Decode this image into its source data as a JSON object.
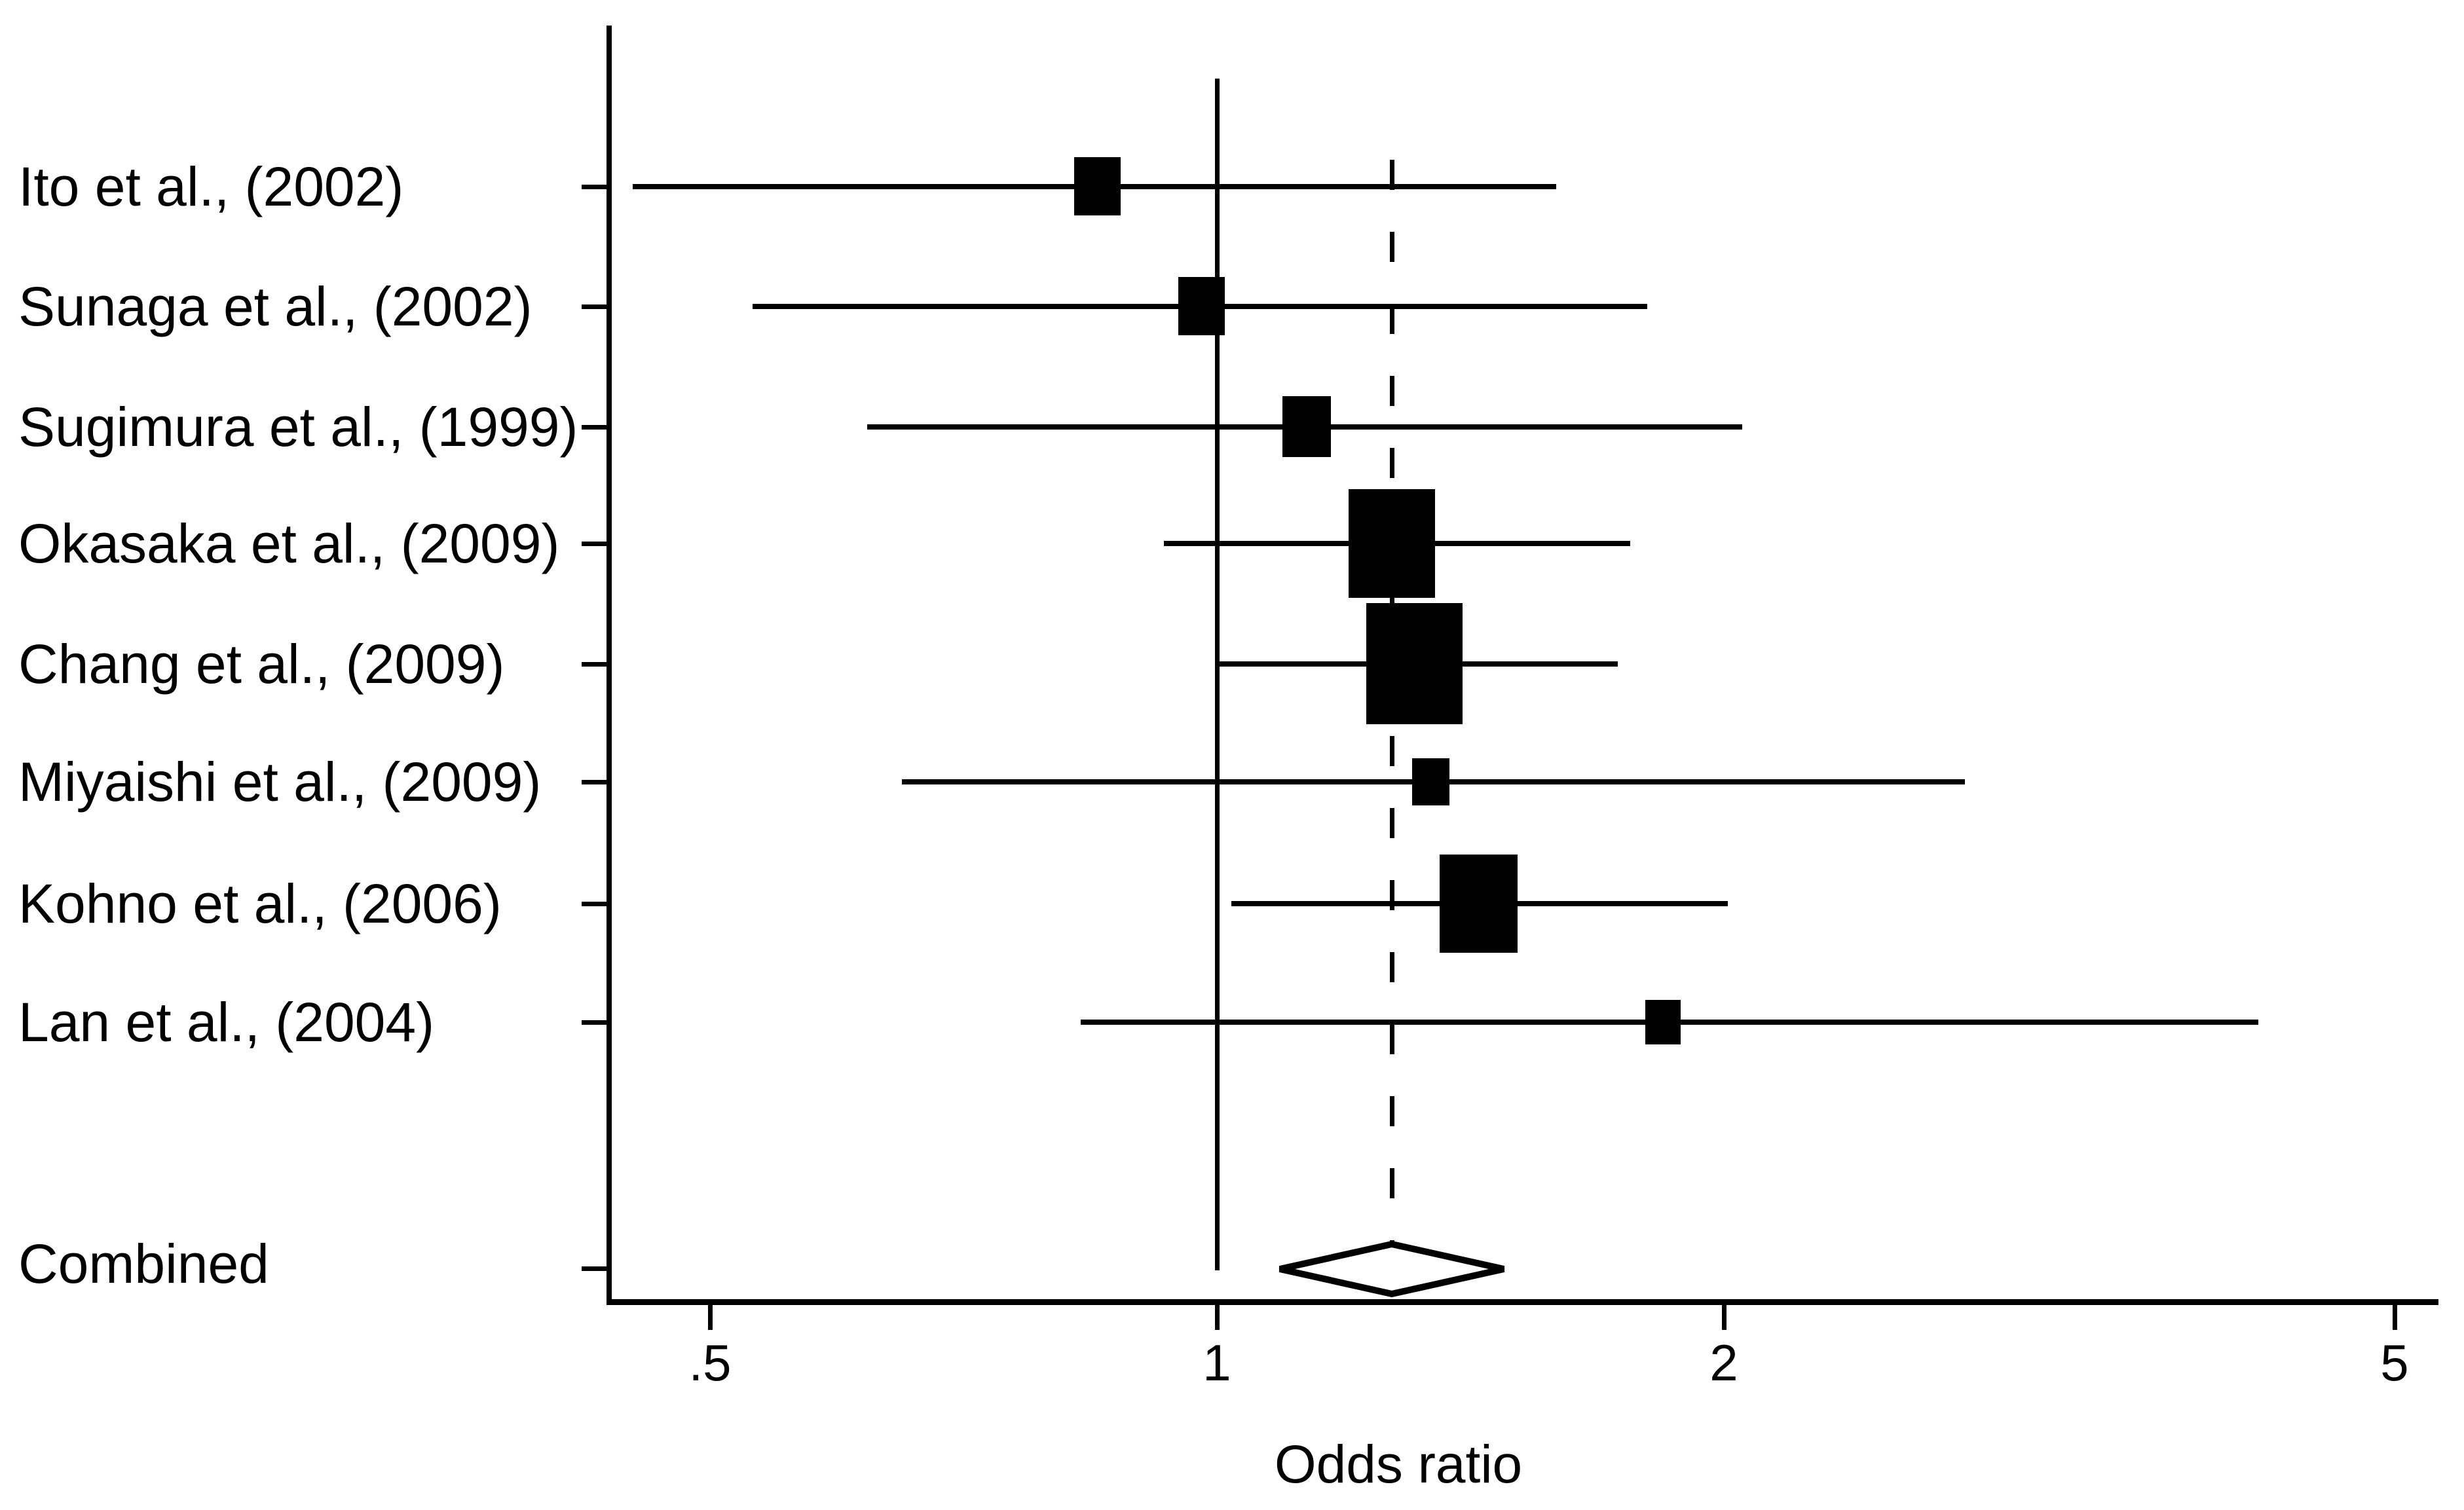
{
  "chart_data": {
    "type": "scatter",
    "subtype": "forest-plot-meta-analysis",
    "title": "",
    "xlabel": "Odds ratio",
    "ylabel": "",
    "x_scale": "log",
    "x_range": [
      0.42,
      5.3
    ],
    "grid": false,
    "legend": "none",
    "x_ticks": [
      {
        "label": ".5",
        "value": 0.5
      },
      {
        "label": "1",
        "value": 1
      },
      {
        "label": "2",
        "value": 2
      },
      {
        "label": "5",
        "value": 5
      }
    ],
    "reference_line_or": 1.0,
    "pooled_dashed_line_or": 1.27,
    "studies": [
      {
        "label": "Ito et al., (2002)",
        "or": 0.85,
        "ci_low": 0.45,
        "ci_high": 1.59,
        "weight": 0.48
      },
      {
        "label": "Sunaga et al., (2002)",
        "or": 0.98,
        "ci_low": 0.53,
        "ci_high": 1.8,
        "weight": 0.48
      },
      {
        "label": "Sugimura et al., (1999)",
        "or": 1.13,
        "ci_low": 0.62,
        "ci_high": 2.05,
        "weight": 0.5
      },
      {
        "label": "Okasaka et al., (2009)",
        "or": 1.27,
        "ci_low": 0.93,
        "ci_high": 1.76,
        "weight": 0.9
      },
      {
        "label": "Chang et al., (2009)",
        "or": 1.31,
        "ci_low": 1.0,
        "ci_high": 1.73,
        "weight": 1.0
      },
      {
        "label": "Miyaishi et al., (2009)",
        "or": 1.34,
        "ci_low": 0.65,
        "ci_high": 2.78,
        "weight": 0.39
      },
      {
        "label": "Kohno et al., (2006)",
        "or": 1.43,
        "ci_low": 1.02,
        "ci_high": 2.01,
        "weight": 0.81
      },
      {
        "label": "Lan et al., (2004)",
        "or": 1.84,
        "ci_low": 0.83,
        "ci_high": 4.15,
        "weight": 0.37
      }
    ],
    "combined": {
      "label": "Combined",
      "or": 1.27,
      "ci_low": 1.09,
      "ci_high": 1.48
    },
    "colors": {
      "marker": "#000000",
      "line": "#000000",
      "background": "#ffffff"
    }
  }
}
